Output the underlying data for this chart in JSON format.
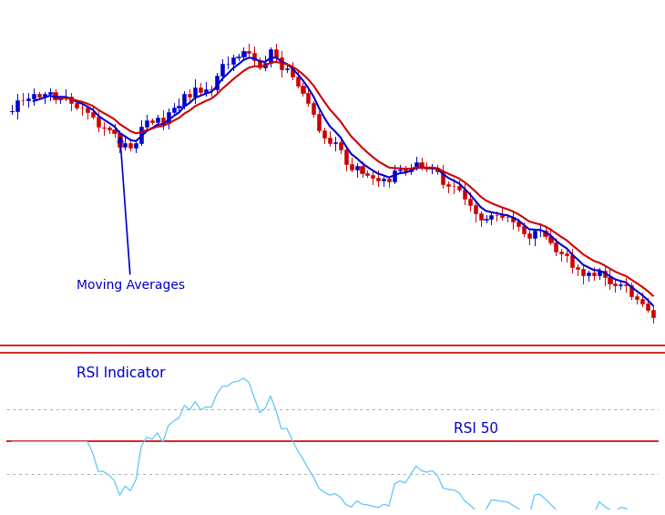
{
  "bg_color": "#ffffff",
  "candle_up_color": "#0000cc",
  "candle_down_color": "#cc0000",
  "ma1_color": "#0000cc",
  "ma2_color": "#cc0000",
  "rsi_color": "#5bc8f5",
  "rsi_mid_color": "#cc0000",
  "rsi_dotted_color": "#aaaaaa",
  "separator_color": "#cc0000",
  "annotation_color": "#0000cc",
  "annotation_text": "Moving Averages",
  "rsi_label": "RSI Indicator",
  "rsi50_label": "RSI 50",
  "n_candles": 120
}
